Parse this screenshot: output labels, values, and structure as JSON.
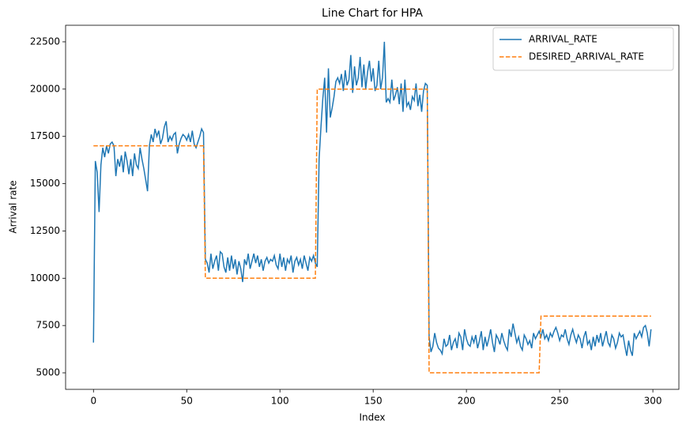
{
  "chart_data": {
    "type": "line",
    "title": "Line Chart for HPA",
    "x_label": "Index",
    "y_label": "Arrival rate",
    "x": [
      0,
      1,
      2,
      3,
      4,
      5,
      6,
      7,
      8,
      9,
      10,
      11,
      12,
      13,
      14,
      15,
      16,
      17,
      18,
      19,
      20,
      21,
      22,
      23,
      24,
      25,
      26,
      27,
      28,
      29,
      30,
      31,
      32,
      33,
      34,
      35,
      36,
      37,
      38,
      39,
      40,
      41,
      42,
      43,
      44,
      45,
      46,
      47,
      48,
      49,
      50,
      51,
      52,
      53,
      54,
      55,
      56,
      57,
      58,
      59,
      60,
      61,
      62,
      63,
      64,
      65,
      66,
      67,
      68,
      69,
      70,
      71,
      72,
      73,
      74,
      75,
      76,
      77,
      78,
      79,
      80,
      81,
      82,
      83,
      84,
      85,
      86,
      87,
      88,
      89,
      90,
      91,
      92,
      93,
      94,
      95,
      96,
      97,
      98,
      99,
      100,
      101,
      102,
      103,
      104,
      105,
      106,
      107,
      108,
      109,
      110,
      111,
      112,
      113,
      114,
      115,
      116,
      117,
      118,
      119,
      120,
      121,
      122,
      123,
      124,
      125,
      126,
      127,
      128,
      129,
      130,
      131,
      132,
      133,
      134,
      135,
      136,
      137,
      138,
      139,
      140,
      141,
      142,
      143,
      144,
      145,
      146,
      147,
      148,
      149,
      150,
      151,
      152,
      153,
      154,
      155,
      156,
      157,
      158,
      159,
      160,
      161,
      162,
      163,
      164,
      165,
      166,
      167,
      168,
      169,
      170,
      171,
      172,
      173,
      174,
      175,
      176,
      177,
      178,
      179,
      180,
      181,
      182,
      183,
      184,
      185,
      186,
      187,
      188,
      189,
      190,
      191,
      192,
      193,
      194,
      195,
      196,
      197,
      198,
      199,
      200,
      201,
      202,
      203,
      204,
      205,
      206,
      207,
      208,
      209,
      210,
      211,
      212,
      213,
      214,
      215,
      216,
      217,
      218,
      219,
      220,
      221,
      222,
      223,
      224,
      225,
      226,
      227,
      228,
      229,
      230,
      231,
      232,
      233,
      234,
      235,
      236,
      237,
      238,
      239,
      240,
      241,
      242,
      243,
      244,
      245,
      246,
      247,
      248,
      249,
      250,
      251,
      252,
      253,
      254,
      255,
      256,
      257,
      258,
      259,
      260,
      261,
      262,
      263,
      264,
      265,
      266,
      267,
      268,
      269,
      270,
      271,
      272,
      273,
      274,
      275,
      276,
      277,
      278,
      279,
      280,
      281,
      282,
      283,
      284,
      285,
      286,
      287,
      288,
      289,
      290,
      291,
      292,
      293,
      294,
      295,
      296,
      297,
      298,
      299
    ],
    "series": [
      {
        "name": "ARRIVAL_RATE",
        "color": "#1f77b4",
        "linestyle": "solid",
        "values": [
          6600,
          16200,
          15600,
          13500,
          16000,
          16900,
          16400,
          17000,
          16600,
          17100,
          17200,
          17000,
          15400,
          16300,
          15900,
          16500,
          15600,
          16700,
          16200,
          15500,
          16300,
          15400,
          16600,
          16000,
          15800,
          16900,
          16300,
          15800,
          15200,
          14600,
          17000,
          17600,
          17200,
          17900,
          17500,
          17800,
          17100,
          17400,
          18000,
          18300,
          17200,
          17500,
          17300,
          17600,
          17700,
          16600,
          17100,
          17400,
          17600,
          17500,
          17300,
          17600,
          17200,
          17800,
          17100,
          16900,
          17200,
          17500,
          17900,
          17700,
          11000,
          10800,
          10300,
          11300,
          10500,
          10900,
          11200,
          10400,
          11400,
          11300,
          10600,
          10300,
          11100,
          10400,
          11200,
          10500,
          11000,
          10200,
          10900,
          10500,
          9800,
          11000,
          10700,
          11300,
          10500,
          10900,
          11300,
          10800,
          11200,
          10600,
          11000,
          10400,
          10900,
          11100,
          10800,
          11000,
          10900,
          11200,
          10700,
          10500,
          11300,
          10600,
          11100,
          10400,
          11000,
          10800,
          11200,
          10300,
          10900,
          11100,
          10700,
          11000,
          10500,
          11200,
          10800,
          10400,
          11100,
          10900,
          11200,
          10800,
          10600,
          16300,
          18000,
          19500,
          20600,
          17700,
          21100,
          18500,
          19000,
          19600,
          20400,
          20600,
          20300,
          20800,
          19900,
          21000,
          20200,
          20500,
          21800,
          19800,
          21200,
          20200,
          20600,
          21700,
          20100,
          21300,
          20000,
          20900,
          21500,
          20400,
          21100,
          19900,
          20200,
          21500,
          20000,
          20600,
          22500,
          19300,
          19500,
          19300,
          20500,
          19400,
          19700,
          20100,
          19200,
          20300,
          18800,
          20500,
          19100,
          19300,
          18900,
          19600,
          19400,
          20300,
          19100,
          19700,
          18800,
          19900,
          20300,
          20200,
          6900,
          6100,
          6400,
          7100,
          6600,
          6300,
          6200,
          6000,
          6800,
          6400,
          6500,
          7000,
          6200,
          6600,
          6800,
          6300,
          7100,
          6900,
          6200,
          7300,
          6800,
          6500,
          6400,
          6900,
          6600,
          7000,
          6300,
          6700,
          7200,
          6200,
          6900,
          6400,
          6800,
          7300,
          6600,
          6100,
          7000,
          6800,
          6500,
          7100,
          6700,
          6400,
          6200,
          7300,
          6900,
          7600,
          7100,
          6600,
          6900,
          6400,
          6200,
          7000,
          6800,
          6500,
          6700,
          6300,
          7100,
          6800,
          7000,
          7200,
          6900,
          7300,
          6800,
          7000,
          6700,
          7100,
          6900,
          7200,
          7400,
          7100,
          6700,
          7000,
          6900,
          7300,
          6800,
          6500,
          7000,
          7300,
          6900,
          6600,
          7000,
          6800,
          6300,
          6900,
          7200,
          6500,
          6700,
          6200,
          6900,
          6400,
          7000,
          6600,
          7100,
          6400,
          6800,
          7200,
          6600,
          6400,
          7000,
          6800,
          6300,
          6600,
          7100,
          6900,
          7000,
          6400,
          5900,
          6700,
          6200,
          5900,
          7100,
          6800,
          7000,
          7200,
          6900,
          7400,
          7500,
          7100,
          6400,
          7300
        ]
      },
      {
        "name": "DESIRED_ARRIVAL_RATE",
        "color": "#ff7f0e",
        "linestyle": "dashed",
        "values": [
          17000,
          17000,
          17000,
          17000,
          17000,
          17000,
          17000,
          17000,
          17000,
          17000,
          17000,
          17000,
          17000,
          17000,
          17000,
          17000,
          17000,
          17000,
          17000,
          17000,
          17000,
          17000,
          17000,
          17000,
          17000,
          17000,
          17000,
          17000,
          17000,
          17000,
          17000,
          17000,
          17000,
          17000,
          17000,
          17000,
          17000,
          17000,
          17000,
          17000,
          17000,
          17000,
          17000,
          17000,
          17000,
          17000,
          17000,
          17000,
          17000,
          17000,
          17000,
          17000,
          17000,
          17000,
          17000,
          17000,
          17000,
          17000,
          17000,
          17000,
          10000,
          10000,
          10000,
          10000,
          10000,
          10000,
          10000,
          10000,
          10000,
          10000,
          10000,
          10000,
          10000,
          10000,
          10000,
          10000,
          10000,
          10000,
          10000,
          10000,
          10000,
          10000,
          10000,
          10000,
          10000,
          10000,
          10000,
          10000,
          10000,
          10000,
          10000,
          10000,
          10000,
          10000,
          10000,
          10000,
          10000,
          10000,
          10000,
          10000,
          10000,
          10000,
          10000,
          10000,
          10000,
          10000,
          10000,
          10000,
          10000,
          10000,
          10000,
          10000,
          10000,
          10000,
          10000,
          10000,
          10000,
          10000,
          10000,
          10000,
          20000,
          20000,
          20000,
          20000,
          20000,
          20000,
          20000,
          20000,
          20000,
          20000,
          20000,
          20000,
          20000,
          20000,
          20000,
          20000,
          20000,
          20000,
          20000,
          20000,
          20000,
          20000,
          20000,
          20000,
          20000,
          20000,
          20000,
          20000,
          20000,
          20000,
          20000,
          20000,
          20000,
          20000,
          20000,
          20000,
          20000,
          20000,
          20000,
          20000,
          20000,
          20000,
          20000,
          20000,
          20000,
          20000,
          20000,
          20000,
          20000,
          20000,
          20000,
          20000,
          20000,
          20000,
          20000,
          20000,
          20000,
          20000,
          20000,
          20000,
          5000,
          5000,
          5000,
          5000,
          5000,
          5000,
          5000,
          5000,
          5000,
          5000,
          5000,
          5000,
          5000,
          5000,
          5000,
          5000,
          5000,
          5000,
          5000,
          5000,
          5000,
          5000,
          5000,
          5000,
          5000,
          5000,
          5000,
          5000,
          5000,
          5000,
          5000,
          5000,
          5000,
          5000,
          5000,
          5000,
          5000,
          5000,
          5000,
          5000,
          5000,
          5000,
          5000,
          5000,
          5000,
          5000,
          5000,
          5000,
          5000,
          5000,
          5000,
          5000,
          5000,
          5000,
          5000,
          5000,
          5000,
          5000,
          5000,
          5000,
          8000,
          8000,
          8000,
          8000,
          8000,
          8000,
          8000,
          8000,
          8000,
          8000,
          8000,
          8000,
          8000,
          8000,
          8000,
          8000,
          8000,
          8000,
          8000,
          8000,
          8000,
          8000,
          8000,
          8000,
          8000,
          8000,
          8000,
          8000,
          8000,
          8000,
          8000,
          8000,
          8000,
          8000,
          8000,
          8000,
          8000,
          8000,
          8000,
          8000,
          8000,
          8000,
          8000,
          8000,
          8000,
          8000,
          8000,
          8000,
          8000,
          8000,
          8000,
          8000,
          8000,
          8000,
          8000,
          8000,
          8000,
          8000,
          8000,
          8000
        ]
      }
    ],
    "xlim": [
      -14.95,
      313.95
    ],
    "ylim": [
      4125,
      23375
    ],
    "xticks": [
      0,
      50,
      100,
      150,
      200,
      250,
      300
    ],
    "yticks": [
      5000,
      7500,
      10000,
      12500,
      15000,
      17500,
      20000,
      22500
    ],
    "grid": false,
    "legend": "upper right"
  }
}
